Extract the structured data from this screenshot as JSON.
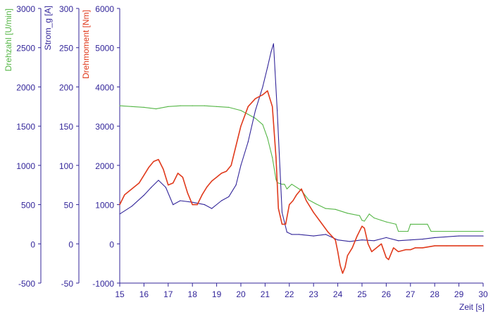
{
  "chart_data": {
    "type": "line",
    "xlabel": "Zeit [s]",
    "xlim": [
      15,
      30
    ],
    "x_ticks": [
      15,
      16,
      17,
      18,
      19,
      20,
      21,
      22,
      23,
      24,
      25,
      26,
      27,
      28,
      29,
      30
    ],
    "colors": {
      "speed": "#55b646",
      "current": "#33269a",
      "torque": "#e03a1c"
    },
    "axes": [
      {
        "key": "speed",
        "label": "Drehzahl [U/min]",
        "ylim": [
          -500,
          3000
        ],
        "ticks": [
          -500,
          0,
          500,
          1000,
          1500,
          2000,
          2500,
          3000
        ]
      },
      {
        "key": "current",
        "label": "Strom_g [A]",
        "ylim": [
          -50,
          300
        ],
        "ticks": [
          -50,
          0,
          50,
          100,
          150,
          200,
          250,
          300
        ]
      },
      {
        "key": "torque",
        "label": "Drehmoment [Nm]",
        "ylim": [
          -1000,
          6000
        ],
        "ticks": [
          -1000,
          0,
          1000,
          2000,
          3000,
          4000,
          5000,
          6000
        ]
      }
    ],
    "series": [
      {
        "key": "speed",
        "axis": "speed",
        "x": [
          15,
          15.5,
          16,
          16.5,
          17,
          17.5,
          18,
          18.5,
          19,
          19.5,
          20,
          20.3,
          20.6,
          20.9,
          21.1,
          21.3,
          21.45,
          21.5,
          21.7,
          21.8,
          21.9,
          22.1,
          22.5,
          22.8,
          23.1,
          23.5,
          23.9,
          24.4,
          24.9,
          25.0,
          25.1,
          25.3,
          25.5,
          25.8,
          26.0,
          26.4,
          26.5,
          26.9,
          27.0,
          27.7,
          27.85,
          30
        ],
        "y": [
          1760,
          1750,
          1740,
          1720,
          1750,
          1760,
          1760,
          1760,
          1750,
          1740,
          1700,
          1650,
          1600,
          1520,
          1350,
          1100,
          820,
          780,
          760,
          760,
          700,
          760,
          680,
          560,
          510,
          450,
          440,
          390,
          360,
          300,
          290,
          380,
          330,
          300,
          280,
          250,
          160,
          160,
          250,
          250,
          160,
          160
        ]
      },
      {
        "key": "current",
        "axis": "current",
        "x": [
          15,
          15.5,
          16,
          16.3,
          16.6,
          16.9,
          17.2,
          17.5,
          18,
          18.5,
          18.8,
          19.2,
          19.5,
          19.8,
          20.0,
          20.3,
          20.6,
          20.9,
          21.1,
          21.25,
          21.35,
          21.5,
          21.7,
          21.9,
          22.1,
          22.4,
          23,
          23.5,
          24,
          24.5,
          25,
          25.5,
          26,
          26.5,
          27,
          27.5,
          28,
          29,
          30
        ],
        "y": [
          38,
          48,
          62,
          72,
          81,
          72,
          50,
          55,
          53,
          50,
          45,
          55,
          60,
          75,
          100,
          130,
          170,
          200,
          225,
          245,
          255,
          170,
          40,
          15,
          12,
          12,
          10,
          12,
          5,
          3,
          5,
          4,
          8,
          4,
          5,
          6,
          8,
          10,
          10
        ]
      },
      {
        "key": "torque",
        "axis": "torque",
        "x": [
          15,
          15.2,
          15.5,
          15.8,
          16,
          16.2,
          16.4,
          16.6,
          16.8,
          17.0,
          17.2,
          17.4,
          17.6,
          17.8,
          18.0,
          18.2,
          18.4,
          18.6,
          18.8,
          19.0,
          19.2,
          19.4,
          19.6,
          19.8,
          20.0,
          20.3,
          20.6,
          20.9,
          21.1,
          21.3,
          21.45,
          21.55,
          21.7,
          21.85,
          22.0,
          22.15,
          22.3,
          22.5,
          22.7,
          23.0,
          23.3,
          23.6,
          23.9,
          24.0,
          24.1,
          24.2,
          24.3,
          24.4,
          24.6,
          24.8,
          25.0,
          25.1,
          25.25,
          25.4,
          25.6,
          25.8,
          26.0,
          26.1,
          26.3,
          26.5,
          26.8,
          27.0,
          27.2,
          27.5,
          28,
          28.5,
          29,
          30
        ],
        "y": [
          1000,
          1250,
          1400,
          1550,
          1750,
          1950,
          2100,
          2150,
          1900,
          1500,
          1550,
          1800,
          1700,
          1300,
          1000,
          1000,
          1250,
          1450,
          1600,
          1700,
          1800,
          1850,
          2000,
          2500,
          3000,
          3500,
          3700,
          3800,
          3900,
          3500,
          2200,
          900,
          500,
          500,
          1000,
          1100,
          1250,
          1400,
          1100,
          800,
          550,
          300,
          100,
          -200,
          -550,
          -750,
          -600,
          -300,
          -100,
          200,
          450,
          400,
          0,
          -200,
          -100,
          0,
          -350,
          -400,
          -100,
          -200,
          -150,
          -150,
          -100,
          -100,
          -50,
          -50,
          -50,
          -50
        ]
      }
    ]
  }
}
